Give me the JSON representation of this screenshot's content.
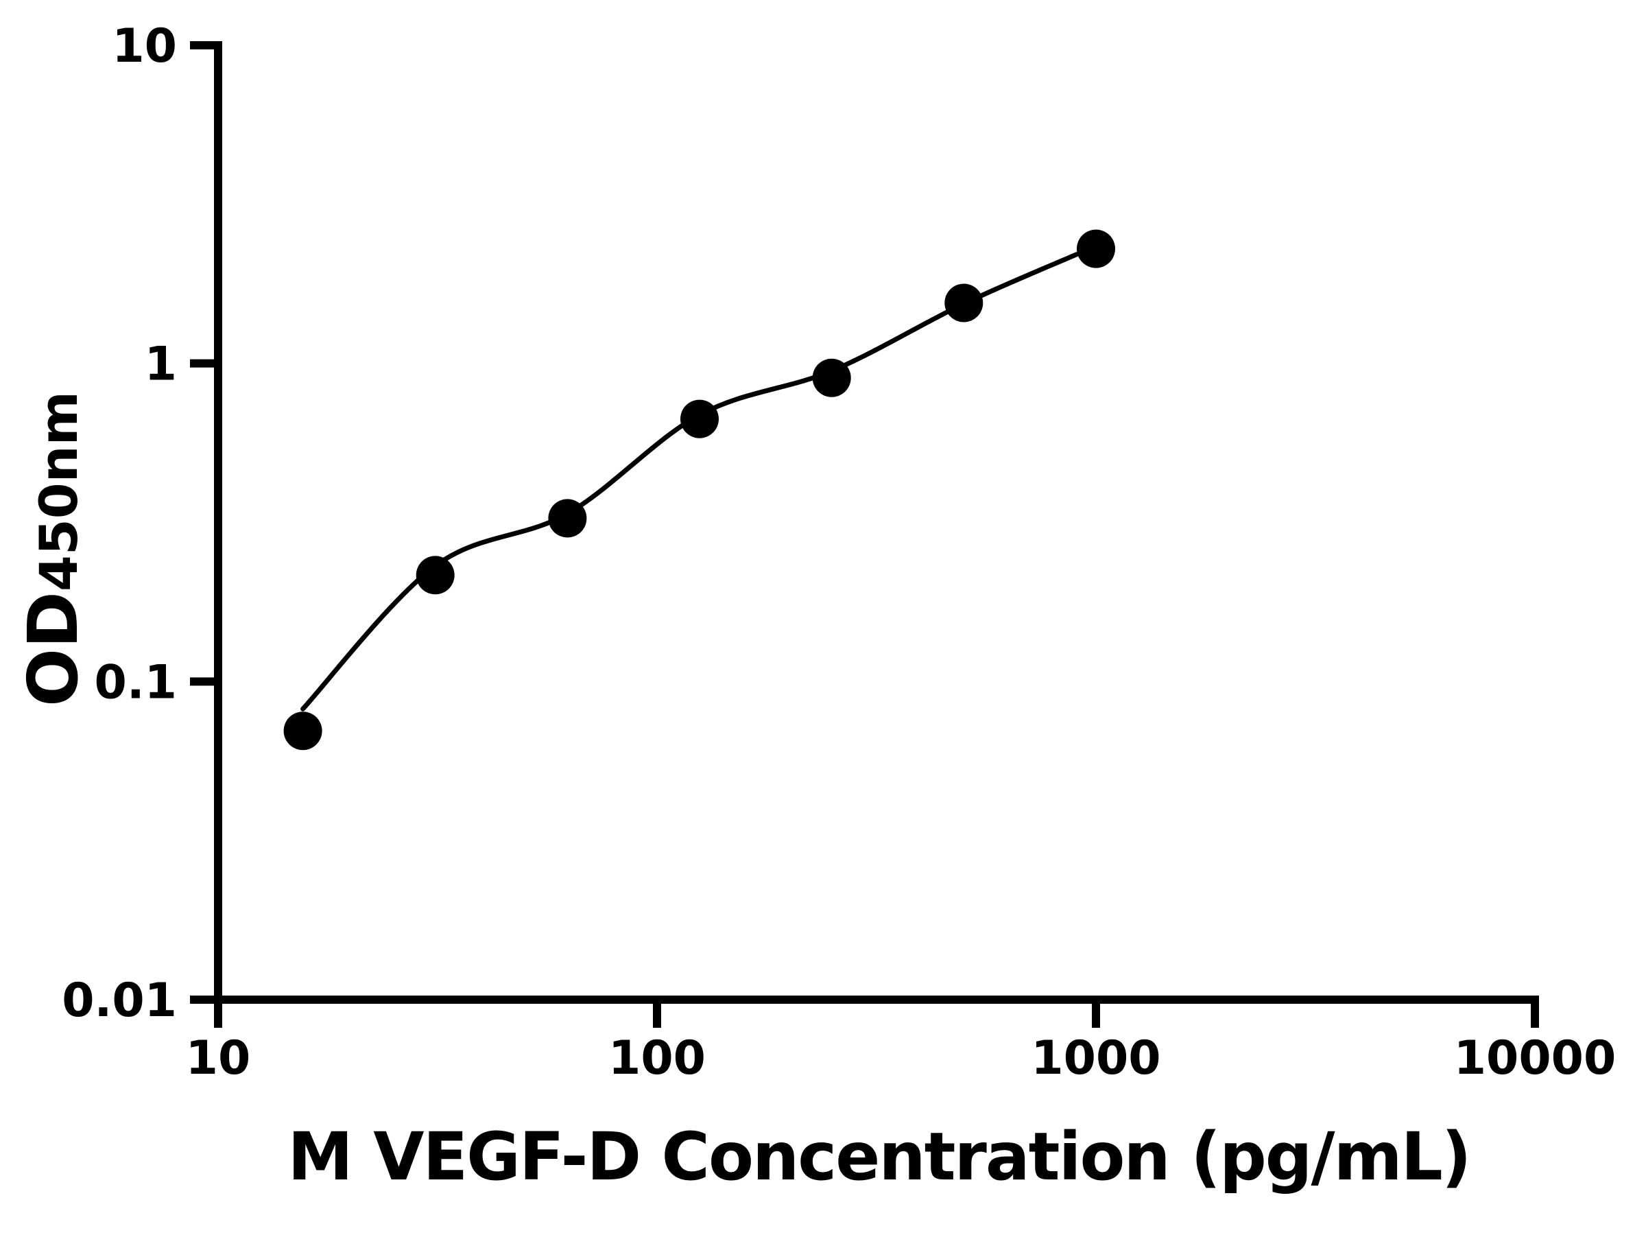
{
  "chart_data": {
    "type": "scatter",
    "title": "",
    "xlabel": "M VEGF-D Concentration (pg/mL)",
    "ylabel_main": "OD",
    "ylabel_sub": "450nm",
    "x_scale": "log",
    "y_scale": "log",
    "xlim": [
      10,
      10000
    ],
    "ylim": [
      0.01,
      10
    ],
    "grid": false,
    "legend": false,
    "x_ticks": [
      {
        "value": 10,
        "label": "10"
      },
      {
        "value": 100,
        "label": "100"
      },
      {
        "value": 1000,
        "label": "1000"
      },
      {
        "value": 10000,
        "label": "10000"
      }
    ],
    "y_ticks": [
      {
        "value": 10,
        "label": "10"
      },
      {
        "value": 1,
        "label": "1"
      },
      {
        "value": 0.1,
        "label": "0.1"
      },
      {
        "value": 0.01,
        "label": "0.01"
      }
    ],
    "series": [
      {
        "marker": "circle",
        "color": "#000000",
        "points": [
          {
            "x": 15.6,
            "y": 0.07
          },
          {
            "x": 31.25,
            "y": 0.216
          },
          {
            "x": 62.5,
            "y": 0.326
          },
          {
            "x": 125,
            "y": 0.669
          },
          {
            "x": 250,
            "y": 0.901
          },
          {
            "x": 500,
            "y": 1.549
          },
          {
            "x": 1000,
            "y": 2.292
          }
        ]
      }
    ],
    "fit_curve": [
      {
        "x": 15.6,
        "y": 0.082
      },
      {
        "x": 31.25,
        "y": 0.231
      },
      {
        "x": 62.5,
        "y": 0.337
      },
      {
        "x": 125,
        "y": 0.689
      },
      {
        "x": 250,
        "y": 0.947
      },
      {
        "x": 500,
        "y": 1.54
      },
      {
        "x": 904,
        "y": 2.202
      }
    ],
    "colors": {
      "foreground": "#000000",
      "background": "#ffffff"
    }
  }
}
